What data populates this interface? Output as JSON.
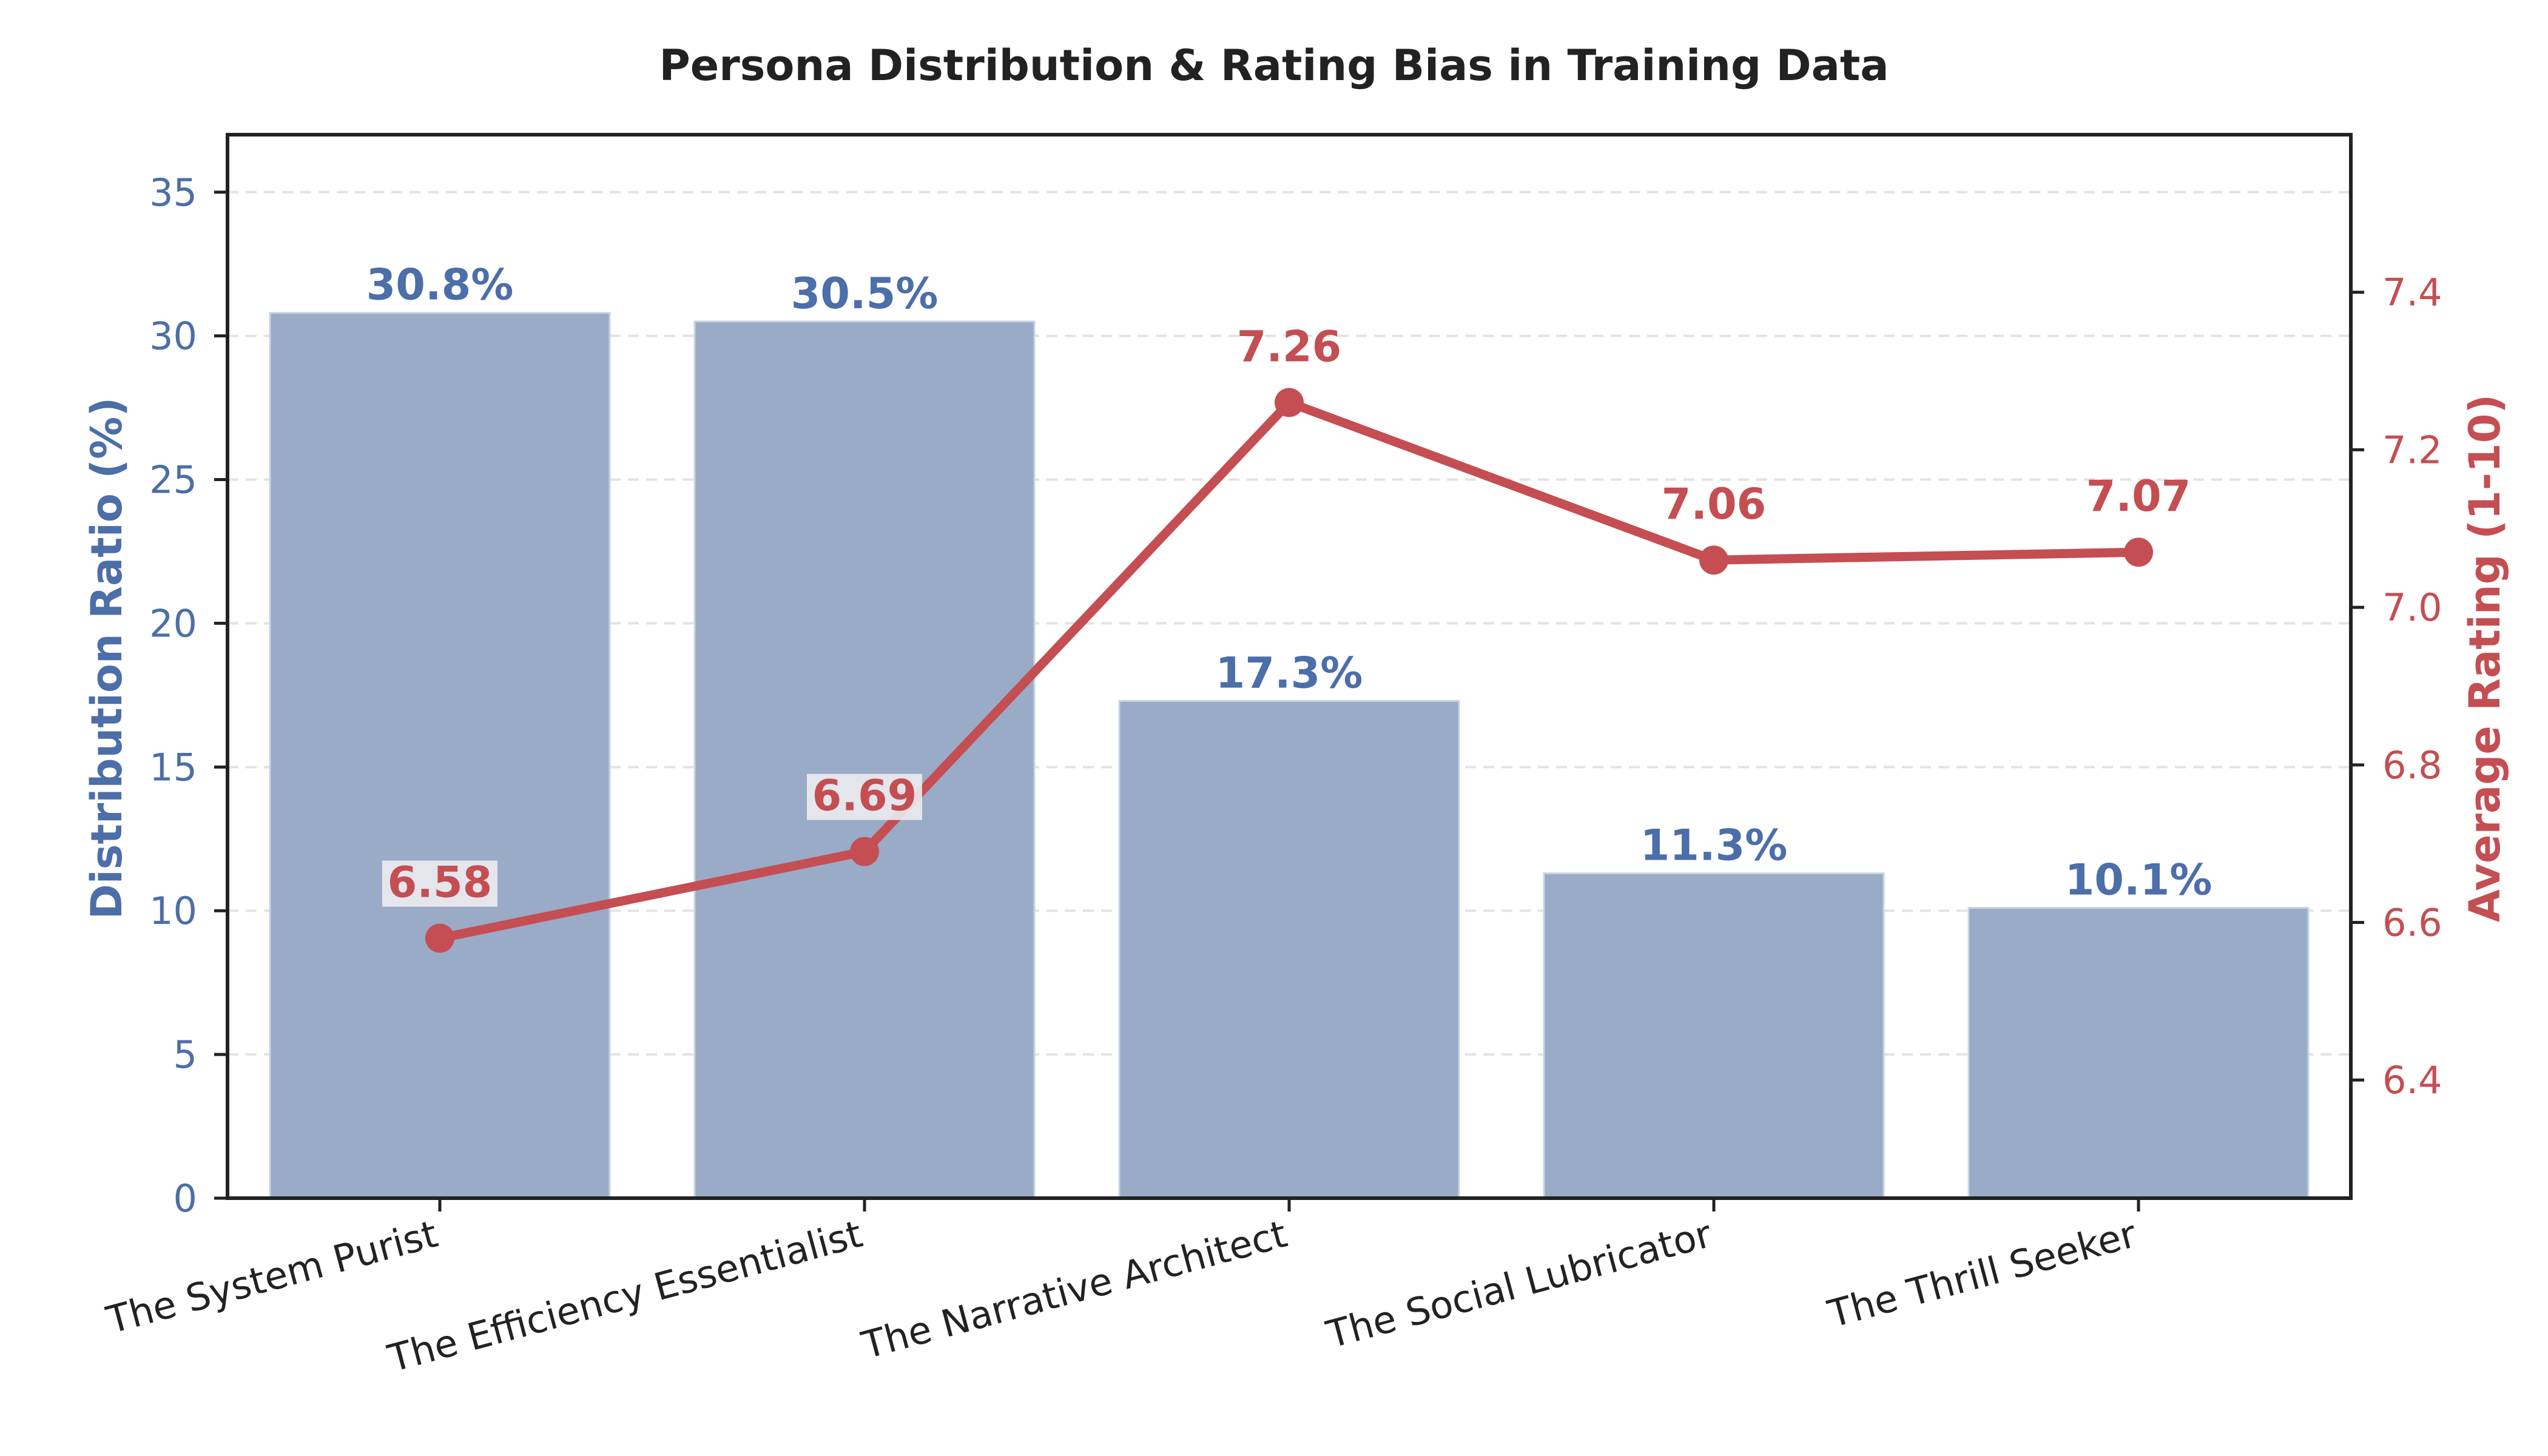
{
  "colors": {
    "bar": "#99abc7",
    "bar_edge": "#c9d3e3",
    "bar_label": "#4c6ea9",
    "left_axis": "#4c6ea9",
    "line": "#c44e52",
    "right_axis": "#c44e52",
    "grid": "#e3e3e3",
    "frame": "#222222",
    "label_box": "#ececf0"
  },
  "chart_data": {
    "type": "bar",
    "title": "Persona Distribution & Rating Bias in Training Data",
    "categories": [
      "The System Purist",
      "The Efficiency Essentialist",
      "The Narrative Architect",
      "The Social Lubricator",
      "The Thrill Seeker"
    ],
    "series": [
      {
        "name": "Distribution Ratio (%)",
        "type": "bar",
        "axis": "left",
        "values": [
          30.8,
          30.5,
          17.3,
          11.3,
          10.1
        ],
        "labels": [
          "30.8%",
          "30.5%",
          "17.3%",
          "11.3%",
          "10.1%"
        ]
      },
      {
        "name": "Average Rating (1-10)",
        "type": "line",
        "axis": "right",
        "values": [
          6.58,
          6.69,
          7.26,
          7.06,
          7.07
        ],
        "labels": [
          "6.58",
          "6.69",
          "7.26",
          "7.06",
          "7.07"
        ]
      }
    ],
    "ylabel": "Distribution Ratio (%)",
    "ylabel_right": "Average Rating (1-10)",
    "ylim": [
      0,
      37
    ],
    "ylim_right": [
      6.25,
      7.6
    ],
    "yticks": [
      0,
      5,
      10,
      15,
      20,
      25,
      30,
      35
    ],
    "yticks_right": [
      "6.4",
      "6.6",
      "6.8",
      "7.0",
      "7.2",
      "7.4"
    ],
    "grid": true
  }
}
